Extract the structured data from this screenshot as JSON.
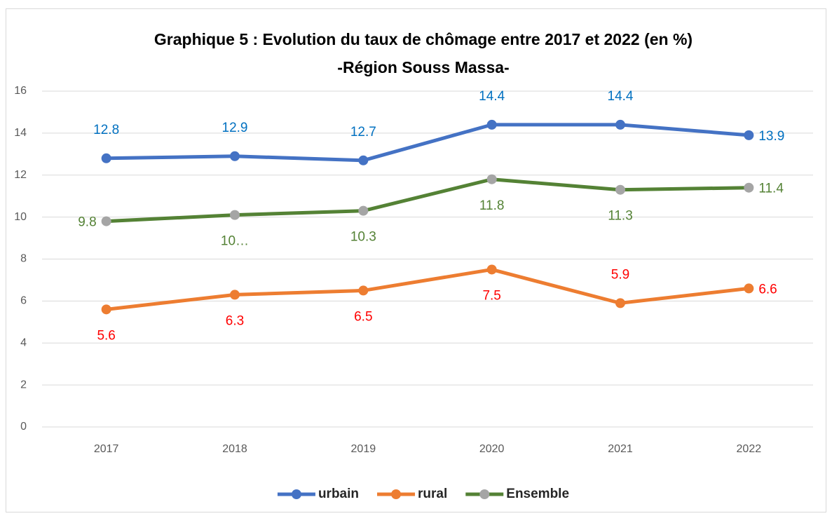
{
  "chart_data": {
    "type": "line",
    "title": "Graphique 5 : Evolution du taux de chômage entre 2017 et 2022 (en %)",
    "subtitle": "-Région Souss Massa-",
    "categories": [
      "2017",
      "2018",
      "2019",
      "2020",
      "2021",
      "2022"
    ],
    "series": [
      {
        "name": "urbain",
        "color": "#4472c4",
        "marker_color": "#4472c4",
        "label_color": "#0070c0",
        "values": [
          12.8,
          12.9,
          12.7,
          14.4,
          14.4,
          13.9
        ]
      },
      {
        "name": "rural",
        "color": "#ed7d31",
        "marker_color": "#ed7d31",
        "label_color": "#ff0000",
        "values": [
          5.6,
          6.3,
          6.5,
          7.5,
          5.9,
          6.6
        ]
      },
      {
        "name": "Ensemble",
        "color": "#548235",
        "marker_color": "#a5a5a5",
        "label_color": "#548235",
        "values": [
          9.8,
          10.1,
          10.3,
          11.8,
          11.3,
          11.4
        ],
        "value_labels": [
          "9.8",
          "10…",
          "10.3",
          "11.8",
          "11.3",
          "11.4"
        ]
      }
    ],
    "ylim": [
      0,
      16
    ],
    "yticks": [
      0,
      2,
      4,
      6,
      8,
      10,
      12,
      14,
      16
    ],
    "grid": true,
    "legend": "bottom"
  }
}
